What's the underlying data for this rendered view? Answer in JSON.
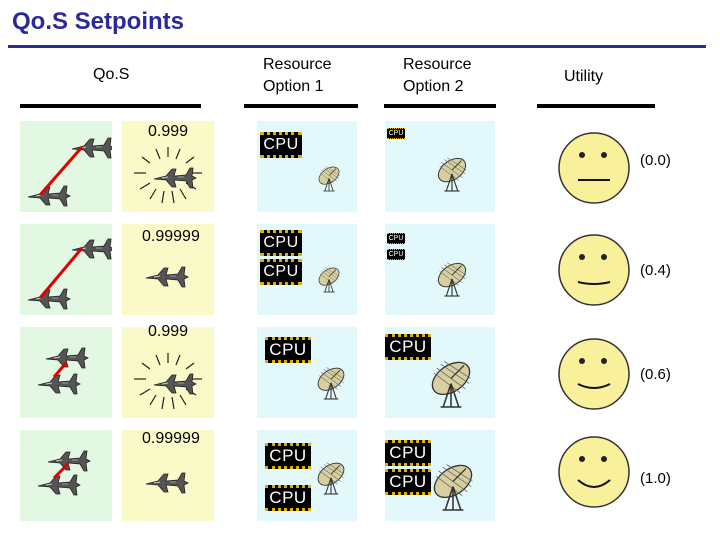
{
  "title": "Qo.S Setpoints",
  "headers": {
    "qos": "Qo.S",
    "resource_option_1": [
      "Resource",
      "Option 1"
    ],
    "resource_option_2": [
      "Resource",
      "Option 2"
    ],
    "utility": "Utility"
  },
  "rows": [
    {
      "qos_value": "0.999",
      "utility_value": "(0.0)",
      "arrow_type": "long",
      "target_effect": "hit"
    },
    {
      "qos_value": "0.99999",
      "utility_value": "(0.4)",
      "arrow_type": "long",
      "target_effect": "none"
    },
    {
      "qos_value": "0.999",
      "utility_value": "(0.6)",
      "arrow_type": "short",
      "target_effect": "hit"
    },
    {
      "qos_value": "0.99999",
      "utility_value": "(1.0)",
      "arrow_type": "short",
      "target_effect": "none"
    }
  ],
  "chip_label": "CPU",
  "colors": {
    "title": "#2a2a99",
    "panel_yellow": "#fafac8",
    "panel_cyan": "#e2f8fa",
    "panel_green": "#e2f8e2",
    "face": "#f8f09a",
    "arrow": "#e00000",
    "chip_pins": "#e0b000"
  },
  "icons": [
    "fighter-jet-icon",
    "explosion-icon",
    "satellite-dish-icon",
    "cpu-chip-icon",
    "smiley-face-icon"
  ]
}
